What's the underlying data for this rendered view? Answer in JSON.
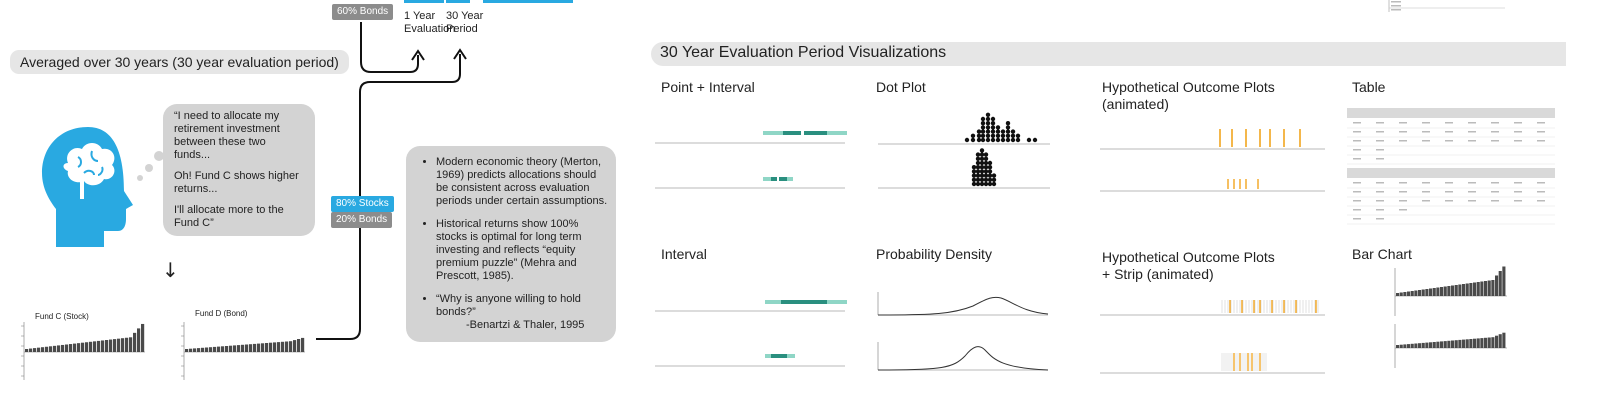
{
  "top": {
    "bonds_60_label": "60% Bonds",
    "eval_1yr_label": "1 Year\nEvaluation",
    "eval_30yr_label": "30 Year\nPeriod"
  },
  "left": {
    "averaged_label": "Averaged over 30 years (30 year evaluation period)",
    "quote_lines": [
      "“I need to allocate my retirement investment between these two funds...",
      "Oh! Fund C shows higher returns...",
      "I'll allocate more to the Fund C”"
    ],
    "arrow_glyph": "↓",
    "fund_c_label": "Fund C (Stock)",
    "fund_d_label": "Fund D (Bond)"
  },
  "middle": {
    "stocks_80_label": "80% Stocks",
    "bonds_20_label": "20% Bonds",
    "notes": [
      "Modern economic theory (Merton, 1969) predicts allocations should be consistent across evaluation periods under certain assumptions.",
      "Historical returns show 100% stocks is optimal for long term investing and reflects “equity premium puzzle” (Mehra and Prescott, 1985).",
      "“Why is anyone willing to hold bonds?”"
    ],
    "note_attribution": "-Benartzi & Thaler, 1995"
  },
  "section": {
    "title": "30 Year Evaluation Period Visualizations"
  },
  "visualizations": {
    "point_interval": "Point + Interval",
    "dot_plot": "Dot Plot",
    "hop": "Hypothetical Outcome Plots\n(animated)",
    "table": "Table",
    "interval": "Interval",
    "probability_density": "Probability Density",
    "hop_strip": "Hypothetical Outcome Plots\n+ Strip (animated)",
    "bar_chart": "Bar Chart"
  },
  "colors": {
    "blue": "#29a9e1",
    "gray_badge": "#8c8c8c",
    "teal": "#2a8f7f",
    "teal_light": "#8fd6c6",
    "orange": "#f2a51e",
    "bar_dark": "#4a4a4a",
    "brain_blue": "#29a9e1"
  }
}
